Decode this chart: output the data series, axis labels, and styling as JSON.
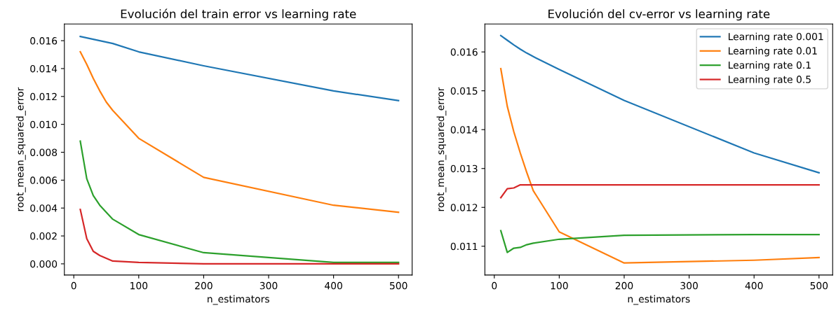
{
  "chart_data": [
    {
      "type": "line",
      "title": "Evolución del train error vs learning rate",
      "xlabel": "n_estimators",
      "ylabel": "root_mean_squared_error",
      "x": [
        10,
        20,
        30,
        40,
        50,
        60,
        100,
        200,
        400,
        500
      ],
      "series": [
        {
          "color": "#1f77b4",
          "values": [
            0.0163,
            0.0162,
            0.0161,
            0.016,
            0.0159,
            0.0158,
            0.0152,
            0.0142,
            0.0124,
            0.0117
          ]
        },
        {
          "color": "#ff7f0e",
          "values": [
            0.0152,
            0.0143,
            0.0133,
            0.0124,
            0.0116,
            0.011,
            0.009,
            0.0062,
            0.0042,
            0.0037
          ]
        },
        {
          "color": "#2ca02c",
          "values": [
            0.0088,
            0.0061,
            0.0049,
            0.0042,
            0.0037,
            0.0032,
            0.0021,
            0.0008,
            0.0001,
            0.0001
          ]
        },
        {
          "color": "#d62728",
          "values": [
            0.0039,
            0.0018,
            0.0009,
            0.0006,
            0.0004,
            0.0002,
            0.0001,
            0.0,
            0.0,
            0.0
          ]
        }
      ],
      "xlim": [
        -14.5,
        521
      ],
      "xticks": [
        0,
        100,
        200,
        300,
        400,
        500
      ],
      "ylim": [
        -0.0008,
        0.0172
      ],
      "yticks": [
        {
          "value": 0,
          "label": "0.000"
        },
        {
          "value": 0.002,
          "label": "0.002"
        },
        {
          "value": 0.004,
          "label": "0.004"
        },
        {
          "value": 0.006,
          "label": "0.006"
        },
        {
          "value": 0.008,
          "label": "0.008"
        },
        {
          "value": 0.01,
          "label": "0.010"
        },
        {
          "value": 0.012,
          "label": "0.012"
        },
        {
          "value": 0.014,
          "label": "0.014"
        },
        {
          "value": 0.016,
          "label": "0.016"
        }
      ],
      "grid": false,
      "legend": false,
      "marker": "none",
      "line_style": "solid"
    },
    {
      "type": "line",
      "title": "Evolución del cv-error vs learning rate",
      "xlabel": "n_estimators",
      "ylabel": "root_mean_squared_error",
      "x": [
        10,
        20,
        30,
        40,
        50,
        60,
        100,
        200,
        400,
        500
      ],
      "series": [
        {
          "name": "Learning rate 0.001",
          "color": "#1f77b4",
          "values": [
            0.01642,
            0.0163,
            0.01618,
            0.01607,
            0.01597,
            0.01588,
            0.01555,
            0.01475,
            0.0134,
            0.01289
          ]
        },
        {
          "name": "Learning rate 0.01",
          "color": "#ff7f0e",
          "values": [
            0.01557,
            0.0146,
            0.01395,
            0.0134,
            0.0129,
            0.01243,
            0.01137,
            0.01057,
            0.01064,
            0.01071
          ]
        },
        {
          "name": "Learning rate 0.1",
          "color": "#2ca02c",
          "values": [
            0.0114,
            0.01084,
            0.01095,
            0.01097,
            0.01104,
            0.01108,
            0.01118,
            0.01128,
            0.0113,
            0.0113
          ]
        },
        {
          "name": "Learning rate 0.5",
          "color": "#d62728",
          "values": [
            0.01225,
            0.01248,
            0.0125,
            0.01258,
            0.01258,
            0.01258,
            0.01258,
            0.01258,
            0.01258,
            0.01258
          ]
        }
      ],
      "xlim": [
        -14.5,
        521
      ],
      "xticks": [
        0,
        100,
        200,
        300,
        400,
        500
      ],
      "ylim": [
        0.01026,
        0.01672
      ],
      "yticks": [
        0.011,
        0.012,
        0.013,
        0.014,
        0.015,
        0.016
      ],
      "grid": false,
      "legend": "top right",
      "marker": "none",
      "line_style": "solid"
    }
  ]
}
